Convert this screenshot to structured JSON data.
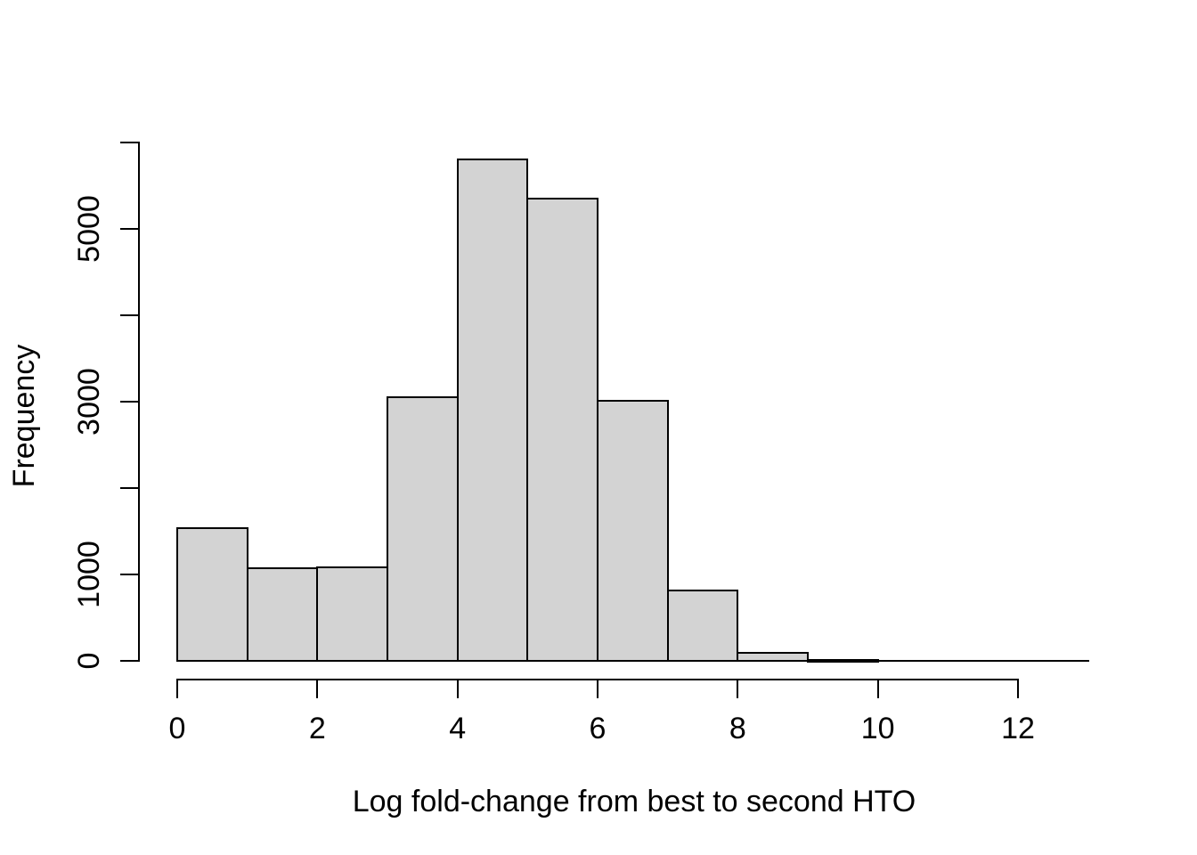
{
  "figure": {
    "background_color": "#ffffff",
    "axis_color": "#000000"
  },
  "chart_data": {
    "type": "bar",
    "subtype": "histogram",
    "title": "",
    "xlabel": "Log fold-change from best to second HTO",
    "ylabel": "Frequency",
    "bin_edges": [
      0,
      1,
      2,
      3,
      4,
      5,
      6,
      7,
      8,
      9,
      10,
      11,
      12,
      13
    ],
    "counts": [
      1540,
      1070,
      1080,
      3050,
      5800,
      5350,
      3010,
      810,
      90,
      15,
      0,
      0,
      0
    ],
    "xlim": [
      0,
      13
    ],
    "ylim": [
      0,
      6000
    ],
    "x_ticks": [
      0,
      2,
      4,
      6,
      8,
      10,
      12
    ],
    "x_tick_labels": [
      "0",
      "2",
      "4",
      "6",
      "8",
      "10",
      "12"
    ],
    "y_ticks": [
      0,
      1000,
      2000,
      3000,
      4000,
      5000,
      6000
    ],
    "y_tick_labels": [
      "0",
      "1000",
      "",
      "3000",
      "",
      "5000",
      ""
    ],
    "grid": false,
    "legend": null,
    "bar_fill": "#d3d3d3",
    "bar_border": "#000000"
  }
}
